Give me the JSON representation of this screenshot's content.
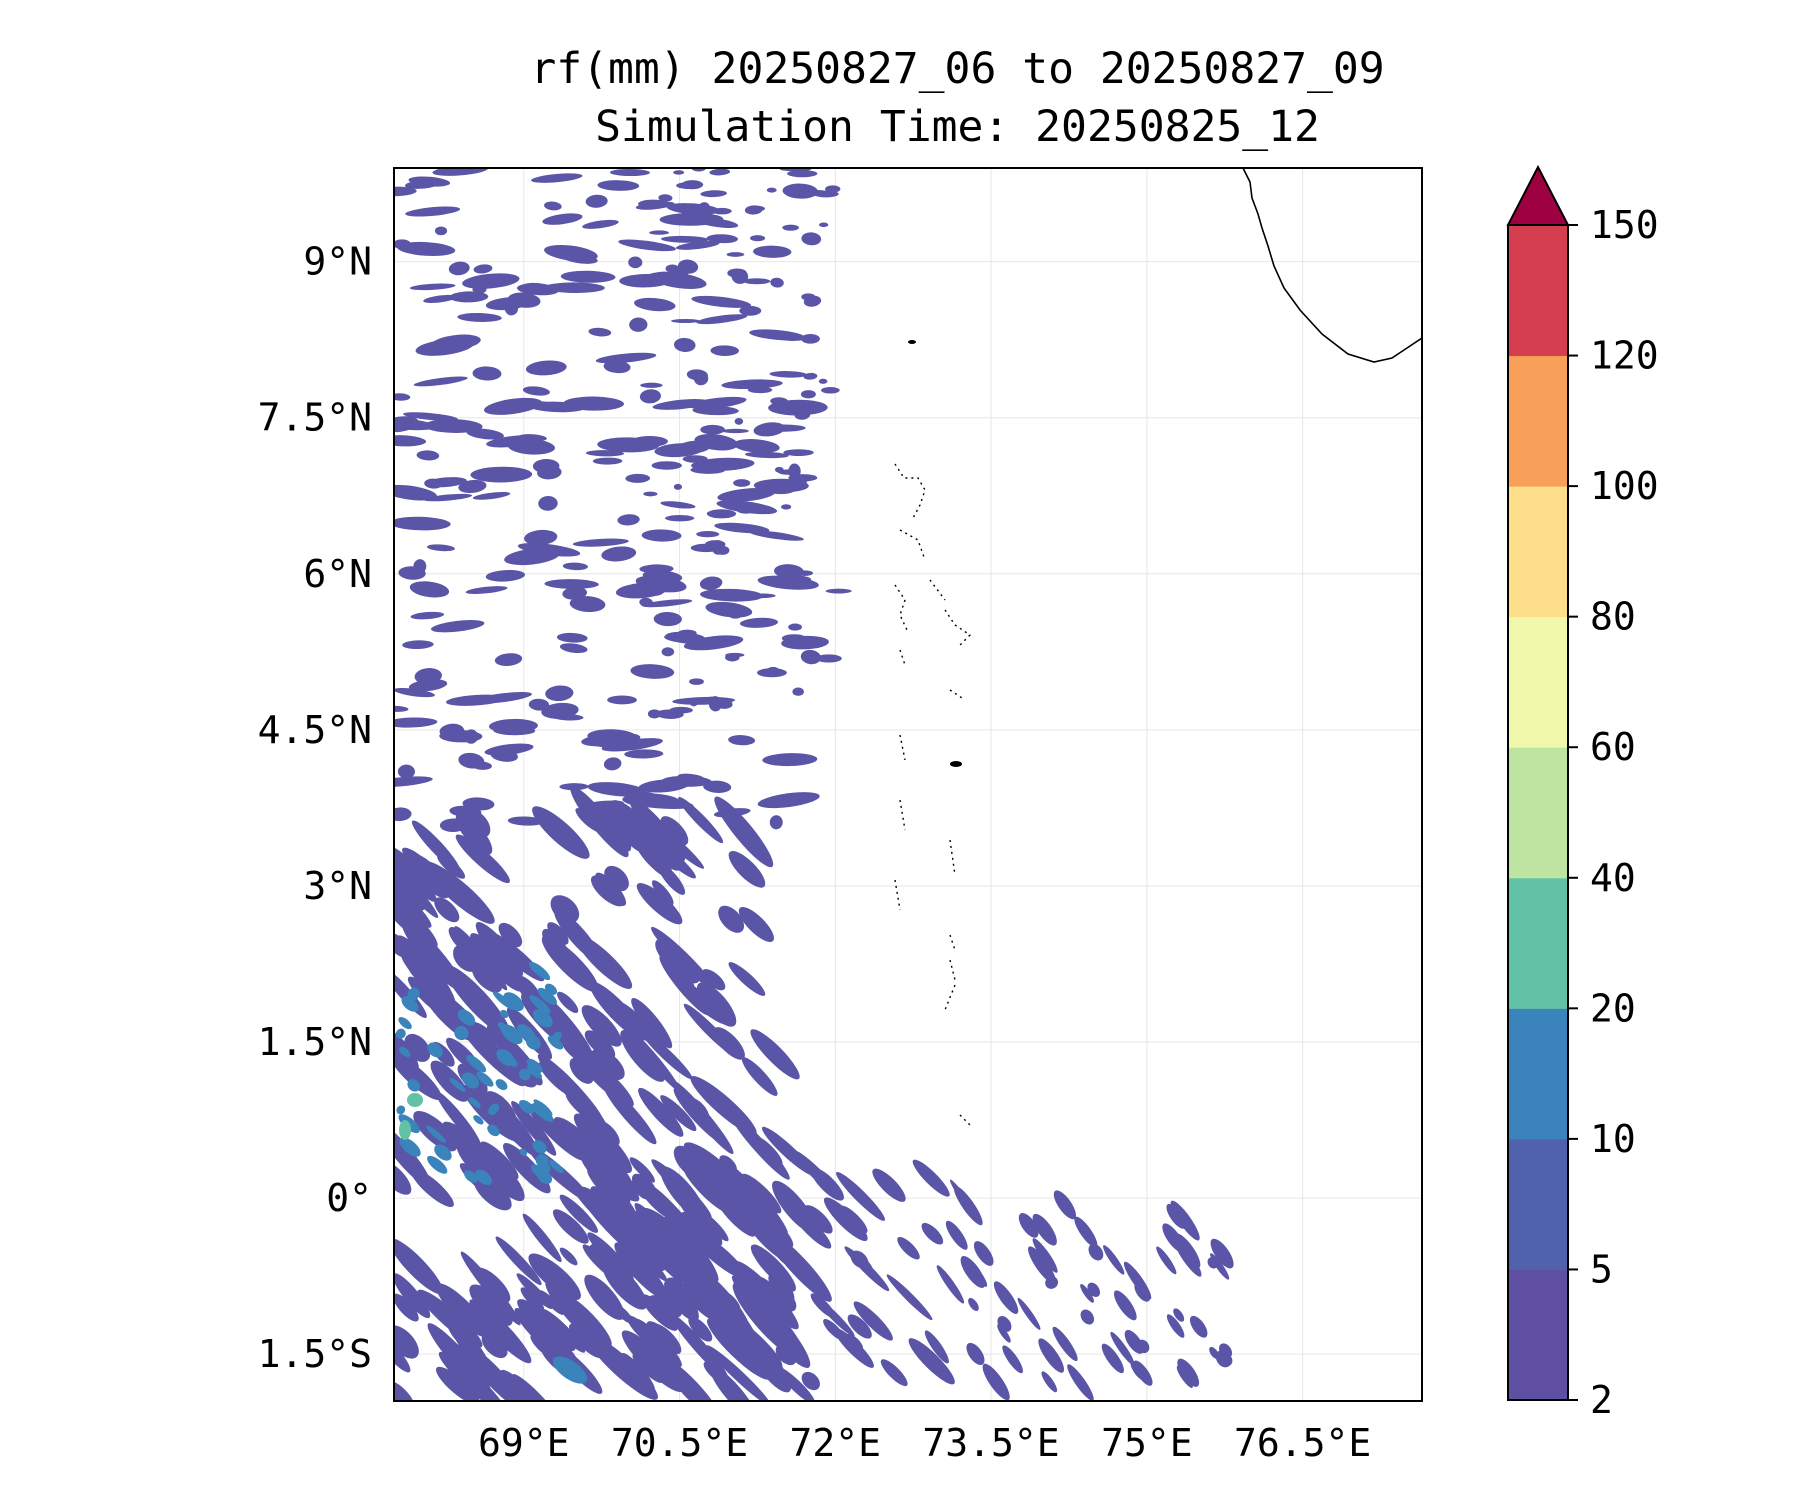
{
  "title_line1": "rf(mm) 20250827_06 to 20250827_09",
  "title_line2": "Simulation Time: 20250825_12",
  "map": {
    "lon_range": [
      67.75,
      77.65
    ],
    "lat_range": [
      -1.95,
      9.9
    ],
    "lon_ticks": [
      {
        "value": 69.0,
        "label": "69°E"
      },
      {
        "value": 70.5,
        "label": "70.5°E"
      },
      {
        "value": 72.0,
        "label": "72°E"
      },
      {
        "value": 73.5,
        "label": "73.5°E"
      },
      {
        "value": 75.0,
        "label": "75°E"
      },
      {
        "value": 76.5,
        "label": "76.5°E"
      }
    ],
    "lat_ticks": [
      {
        "value": 9.0,
        "label": "9°N"
      },
      {
        "value": 7.5,
        "label": "7.5°N"
      },
      {
        "value": 6.0,
        "label": "6°N"
      },
      {
        "value": 4.5,
        "label": "4.5°N"
      },
      {
        "value": 3.0,
        "label": "3°N"
      },
      {
        "value": 1.5,
        "label": "1.5°N"
      },
      {
        "value": 0.0,
        "label": "0°"
      },
      {
        "value": -1.5,
        "label": "1.5°S"
      }
    ],
    "gridlines": true
  },
  "colorbar": {
    "levels": [
      "2",
      "5",
      "10",
      "20",
      "40",
      "60",
      "80",
      "100",
      "120",
      "150"
    ],
    "colors": [
      "#5e4fa2",
      "#4f62ab",
      "#3a84bb",
      "#63c2a6",
      "#bde4a0",
      "#f2f8ab",
      "#fcdd8a",
      "#f8a05a",
      "#d53e4f",
      "#9e0142"
    ],
    "extend": "max"
  },
  "rain_dominant_color": "#5a55a6"
}
